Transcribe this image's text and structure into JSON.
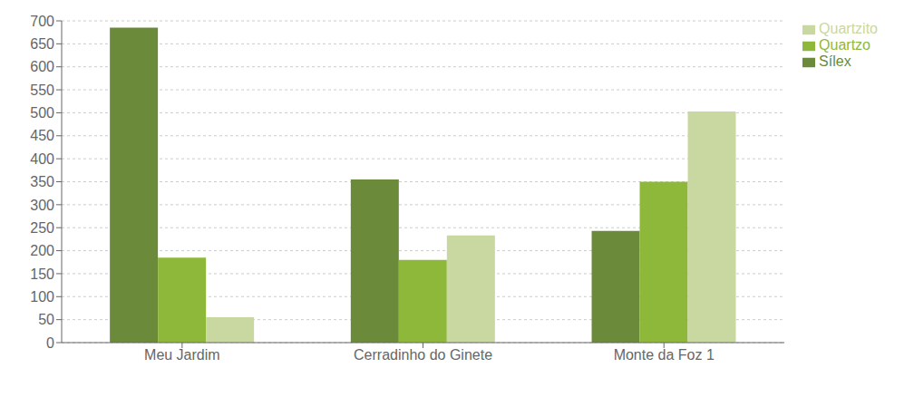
{
  "chart_data": {
    "type": "bar",
    "categories": [
      "Meu Jardim",
      "Cerradinho do Ginete",
      "Monte da Foz 1"
    ],
    "series": [
      {
        "name": "Sílex",
        "values": [
          685,
          355,
          243
        ],
        "color": "#6b8a3a"
      },
      {
        "name": "Quartzo",
        "values": [
          185,
          180,
          350
        ],
        "color": "#8db83a"
      },
      {
        "name": "Quartzito",
        "values": [
          55,
          233,
          503
        ],
        "color": "#c8d8a0"
      }
    ],
    "ylim": [
      0,
      700
    ],
    "yticks": [
      0,
      50,
      100,
      150,
      200,
      250,
      300,
      350,
      400,
      450,
      500,
      550,
      600,
      650,
      700
    ],
    "grid": true,
    "legend": "right"
  }
}
